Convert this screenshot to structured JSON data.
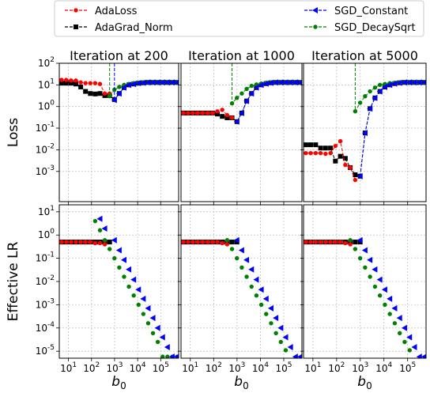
{
  "chart_data": {
    "type": "line",
    "legend": {
      "placement": "top",
      "entries": [
        {
          "name": "AdaLoss",
          "color": "#ff0000",
          "marker": "circle"
        },
        {
          "name": "AdaGrad_Norm",
          "color": "#000000",
          "marker": "square"
        },
        {
          "name": "SGD_Constant",
          "color": "#0000ff",
          "marker": "triangle-left"
        },
        {
          "name": "SGD_DecaySqrt",
          "color": "#008000",
          "marker": "circle"
        }
      ]
    },
    "row_labels": [
      "Loss",
      "Effective LR"
    ],
    "xlabel": "b0",
    "x_scale": "log",
    "xlim": [
      4,
      600000
    ],
    "x_ticks": [
      {
        "v": 10,
        "label": "10^1"
      },
      {
        "v": 100,
        "label": "10^2"
      },
      {
        "v": 1000,
        "label": "10^3"
      },
      {
        "v": 10000,
        "label": "10^4"
      },
      {
        "v": 100000,
        "label": "10^5"
      }
    ],
    "loss_ylim": [
      4e-05,
      100
    ],
    "loss_y_ticks": [
      {
        "v": 100,
        "label": "10^2"
      },
      {
        "v": 10,
        "label": "10^1"
      },
      {
        "v": 1,
        "label": "10^0"
      },
      {
        "v": 0.1,
        "label": "10^-1"
      },
      {
        "v": 0.01,
        "label": "10^-2"
      },
      {
        "v": 0.001,
        "label": "10^-3"
      }
    ],
    "lr_ylim": [
      5e-06,
      20
    ],
    "lr_y_ticks": [
      {
        "v": 10,
        "label": "10^1"
      },
      {
        "v": 1,
        "label": "10^0"
      },
      {
        "v": 0.1,
        "label": "10^-1"
      },
      {
        "v": 0.01,
        "label": "10^-2"
      },
      {
        "v": 0.001,
        "label": "10^-3"
      },
      {
        "v": 0.0001,
        "label": "10^-4"
      },
      {
        "v": 1e-05,
        "label": "10^-5"
      }
    ],
    "panels": [
      {
        "title": "Iteration at 200",
        "loss": {
          "AdaLoss": {
            "x": [
              5,
              8,
              13,
              21,
              34,
              55,
              89,
              144,
              233,
              377,
              610
            ],
            "y": [
              17,
              17,
              16,
              16,
              13,
              12,
              12,
              12,
              11,
              4,
              4
            ]
          },
          "AdaGrad_Norm": {
            "x": [
              5,
              8,
              13,
              21,
              34,
              55,
              89,
              144,
              233,
              377,
              610,
              987,
              1597,
              2584,
              4181,
              6765,
              10946,
              17711,
              28657,
              46368,
              75025,
              121393,
              196418,
              317811,
              514229
            ],
            "y": [
              12,
              12,
              12,
              11,
              8,
              5,
              4,
              3.8,
              4,
              3.2,
              3.2,
              2.1,
              4,
              7.5,
              10,
              11,
              12,
              12.5,
              13,
              13,
              13,
              13,
              13,
              13,
              13
            ]
          },
          "SGD_Constant": {
            "x": [
              987,
              987,
              1597,
              2584,
              4181,
              6765,
              10946,
              17711,
              28657,
              46368,
              75025,
              121393,
              196418,
              317811,
              514229
            ],
            "y": [
              100,
              2,
              4,
              7.5,
              10,
              11,
              12,
              12.5,
              13,
              13,
              13,
              13,
              13,
              13,
              13
            ]
          },
          "SGD_DecaySqrt": {
            "x": [
              610,
              610,
              987,
              1597,
              2584,
              4181,
              6765,
              10946,
              17711,
              28657,
              46368,
              75025,
              121393,
              196418,
              317811,
              514229
            ],
            "y": [
              100,
              3,
              6,
              8,
              10,
              11,
              12,
              12.5,
              13,
              13,
              13,
              13,
              13,
              13,
              13,
              13
            ]
          }
        },
        "lr": {
          "AdaLoss": {
            "x": [
              5,
              8,
              13,
              21,
              34,
              55,
              89,
              144,
              233,
              377
            ],
            "y": [
              0.5,
              0.5,
              0.5,
              0.5,
              0.5,
              0.5,
              0.5,
              0.45,
              0.45,
              0.4
            ]
          },
          "AdaGrad_Norm": {
            "x": [
              5,
              8,
              13,
              21,
              34,
              55,
              89,
              144,
              233,
              377,
              610
            ],
            "y": [
              0.5,
              0.5,
              0.5,
              0.5,
              0.5,
              0.5,
              0.5,
              0.5,
              0.5,
              0.5,
              0.5
            ]
          },
          "SGD_Constant": {
            "x": [
              233,
              377,
              987,
              1597,
              2584,
              4181,
              6765,
              10946,
              17711,
              28657,
              46368,
              75025,
              121393,
              196418,
              317811,
              514229
            ],
            "y": [
              5,
              1.9,
              0.6,
              0.22,
              0.085,
              0.033,
              0.012,
              0.0045,
              0.0018,
              0.0007,
              0.00027,
              0.0001,
              4e-05,
              1.5e-05,
              5.8e-06,
              5.8e-06
            ]
          },
          "SGD_DecaySqrt": {
            "x": [
              144,
              233,
              377,
              610,
              987,
              1597,
              2584,
              4181,
              6765,
              10946,
              17711,
              28657,
              46368,
              75025,
              121393,
              196418,
              317811,
              514229
            ],
            "y": [
              4,
              1.6,
              0.6,
              0.25,
              0.1,
              0.04,
              0.016,
              0.006,
              0.0025,
              0.001,
              0.0004,
              0.00016,
              6e-05,
              2.5e-05,
              5.8e-06,
              5.8e-06,
              5.8e-06,
              5.8e-06
            ]
          }
        }
      },
      {
        "title": "Iteration at 1000",
        "loss": {
          "AdaLoss": {
            "x": [
              5,
              8,
              13,
              21,
              34,
              55,
              89,
              144,
              233,
              377,
              610
            ],
            "y": [
              0.5,
              0.5,
              0.5,
              0.5,
              0.5,
              0.5,
              0.5,
              0.6,
              0.7,
              0.4,
              0.3
            ]
          },
          "AdaGrad_Norm": {
            "x": [
              5,
              8,
              13,
              21,
              34,
              55,
              89,
              144,
              233,
              377,
              610,
              987,
              1597,
              2584,
              4181,
              6765,
              10946,
              17711,
              28657,
              46368,
              75025,
              121393,
              196418,
              317811,
              514229
            ],
            "y": [
              0.5,
              0.5,
              0.5,
              0.5,
              0.5,
              0.5,
              0.5,
              0.45,
              0.35,
              0.3,
              0.3,
              0.2,
              0.5,
              1.8,
              4,
              7.5,
              10,
              11.5,
              12.5,
              13,
              13,
              13,
              13,
              13,
              13
            ]
          },
          "SGD_Constant": {
            "x": [
              987,
              1597,
              2584,
              4181,
              6765,
              10946,
              17711,
              28657,
              46368,
              75025,
              121393,
              196418,
              317811,
              514229
            ],
            "y": [
              0.2,
              0.5,
              1.8,
              4,
              7.5,
              10,
              11.5,
              12.5,
              13,
              13,
              13,
              13,
              13,
              13
            ]
          },
          "SGD_DecaySqrt": {
            "x": [
              610,
              610,
              987,
              1597,
              2584,
              4181,
              6765,
              10946,
              17711,
              28657,
              46368,
              75025,
              121393,
              196418,
              317811,
              514229
            ],
            "y": [
              100,
              1.4,
              2.5,
              4,
              6.5,
              9,
              10.5,
              11.5,
              12.5,
              13,
              13,
              13,
              13,
              13,
              13,
              13
            ]
          }
        },
        "lr": {
          "AdaLoss": {
            "x": [
              5,
              8,
              13,
              21,
              34,
              55,
              89,
              144,
              233,
              377
            ],
            "y": [
              0.5,
              0.5,
              0.5,
              0.5,
              0.5,
              0.5,
              0.5,
              0.5,
              0.45,
              0.4
            ]
          },
          "AdaGrad_Norm": {
            "x": [
              5,
              8,
              13,
              21,
              34,
              55,
              89,
              144,
              233,
              377,
              610,
              987
            ],
            "y": [
              0.5,
              0.5,
              0.5,
              0.5,
              0.5,
              0.5,
              0.5,
              0.5,
              0.5,
              0.5,
              0.5,
              0.5
            ]
          },
          "SGD_Constant": {
            "x": [
              987,
              1597,
              2584,
              4181,
              6765,
              10946,
              17711,
              28657,
              46368,
              75025,
              121393,
              196418,
              317811,
              514229
            ],
            "y": [
              0.6,
              0.22,
              0.085,
              0.033,
              0.012,
              0.0045,
              0.0018,
              0.0007,
              0.00027,
              0.0001,
              4e-05,
              1.5e-05,
              5.8e-06,
              5.8e-06
            ]
          },
          "SGD_DecaySqrt": {
            "x": [
              377,
              610,
              987,
              1597,
              2584,
              4181,
              6765,
              10946,
              17711,
              28657,
              46368,
              75025,
              121393
            ],
            "y": [
              0.6,
              0.25,
              0.1,
              0.04,
              0.016,
              0.006,
              0.0025,
              0.001,
              0.0004,
              0.00016,
              6e-05,
              2.5e-05,
              1.1e-05
            ]
          }
        }
      },
      {
        "title": "Iteration at 5000",
        "loss": {
          "AdaLoss": {
            "x": [
              5,
              8,
              13,
              21,
              34,
              55,
              89,
              144,
              233,
              377,
              610
            ],
            "y": [
              0.007,
              0.007,
              0.007,
              0.007,
              0.0065,
              0.007,
              0.015,
              0.025,
              0.002,
              0.0015,
              0.0004
            ]
          },
          "AdaGrad_Norm": {
            "x": [
              5,
              8,
              13,
              21,
              34,
              55,
              89,
              144,
              233,
              377,
              610,
              987,
              1597,
              2584,
              4181,
              6765,
              10946,
              17711,
              28657,
              46368,
              75025,
              121393,
              196418,
              317811,
              514229
            ],
            "y": [
              0.017,
              0.017,
              0.017,
              0.012,
              0.012,
              0.012,
              0.003,
              0.005,
              0.004,
              0.0015,
              0.0007,
              0.0006,
              0.06,
              0.8,
              2.5,
              5,
              8,
              10,
              11.5,
              12.5,
              13,
              13,
              13,
              13,
              13
            ]
          },
          "SGD_Constant": {
            "x": [
              987,
              1597,
              2584,
              4181,
              6765,
              10946,
              17711,
              28657,
              46368,
              75025,
              121393,
              196418,
              317811,
              514229
            ],
            "y": [
              0.0006,
              0.06,
              0.8,
              2.5,
              5,
              8,
              10,
              11.5,
              12.5,
              13,
              13,
              13,
              13,
              13
            ]
          },
          "SGD_DecaySqrt": {
            "x": [
              610,
              610,
              987,
              1597,
              2584,
              4181,
              6765,
              10946,
              17711,
              28657,
              46368,
              75025,
              121393,
              196418,
              317811,
              514229
            ],
            "y": [
              100,
              0.6,
              1.5,
              3,
              5,
              7.5,
              10,
              11,
              12,
              12.5,
              13,
              13,
              13,
              13,
              13,
              13
            ]
          }
        },
        "lr": {
          "AdaLoss": {
            "x": [
              5,
              8,
              13,
              21,
              34,
              55,
              89,
              144,
              233,
              377
            ],
            "y": [
              0.5,
              0.5,
              0.5,
              0.5,
              0.5,
              0.5,
              0.5,
              0.5,
              0.45,
              0.4
            ]
          },
          "AdaGrad_Norm": {
            "x": [
              5,
              8,
              13,
              21,
              34,
              55,
              89,
              144,
              233,
              377,
              610,
              987
            ],
            "y": [
              0.5,
              0.5,
              0.5,
              0.5,
              0.5,
              0.5,
              0.5,
              0.5,
              0.5,
              0.5,
              0.5,
              0.5
            ]
          },
          "SGD_Constant": {
            "x": [
              987,
              1597,
              2584,
              4181,
              6765,
              10946,
              17711,
              28657,
              46368,
              75025,
              121393,
              196418,
              317811,
              514229
            ],
            "y": [
              0.6,
              0.22,
              0.085,
              0.033,
              0.012,
              0.0045,
              0.0018,
              0.0007,
              0.00027,
              0.0001,
              4e-05,
              1.5e-05,
              5.8e-06,
              5.8e-06
            ]
          },
          "SGD_DecaySqrt": {
            "x": [
              377,
              610,
              987,
              1597,
              2584,
              4181,
              6765,
              10946,
              17711,
              28657,
              46368,
              75025,
              121393
            ],
            "y": [
              0.6,
              0.25,
              0.1,
              0.04,
              0.016,
              0.006,
              0.0025,
              0.001,
              0.0004,
              0.00016,
              6e-05,
              2.5e-05,
              1.1e-05
            ]
          }
        }
      }
    ]
  }
}
